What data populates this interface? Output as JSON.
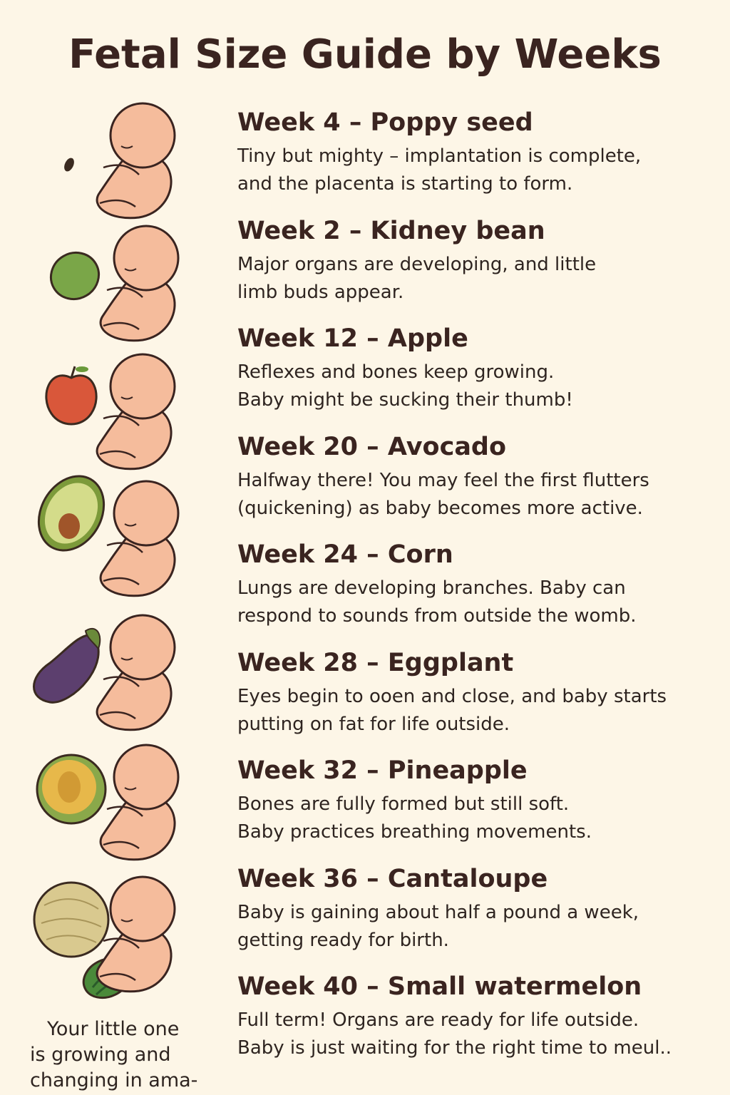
{
  "title": "Fetal Size Guide by Weeks",
  "items": [
    {
      "heading": "Week 4 – Poppy seed",
      "lines": [
        "Tiny but mighty – implantation  is complete,",
        "and the placenta is starting to form."
      ]
    },
    {
      "heading": "Week 2 – Kidney bean",
      "lines": [
        "Major organs are developing, and little",
        "limb buds appear."
      ]
    },
    {
      "heading": "Week 12 – Apple",
      "lines": [
        "Reflexes and bones keep growing.",
        "Baby might be sucking their thumb!"
      ]
    },
    {
      "heading": "Week 20 – Avocado",
      "lines": [
        "Halfway there! You may feel the first flutters",
        "(quickening) as baby becomes more active."
      ]
    },
    {
      "heading": "Week 24 – Corn",
      "lines": [
        "Lungs are developing branches. Baby can",
        "respond to sounds from outside the womb."
      ]
    },
    {
      "heading": "Week 28 – Eggplant",
      "lines": [
        "Eyes begin to ooen and close, and baby starts",
        "putting on fat for life outside."
      ]
    },
    {
      "heading": "Week 32 – Pineapple",
      "lines": [
        "Bones are fully formed but still soft.",
        "Baby practices breathing movements."
      ]
    },
    {
      "heading": "Week 36 – Cantaloupe",
      "lines": [
        "Baby is gaining about half a pound a week,",
        "getting ready for birth."
      ]
    },
    {
      "heading": "Week 40 – Small watermelon",
      "lines": [
        "Full term! Organs are ready for life outside.",
        "Baby is just waiting for the right time to meul.."
      ]
    }
  ],
  "caption": [
    "Your little one",
    "is growing and",
    "changing in ama-"
  ]
}
